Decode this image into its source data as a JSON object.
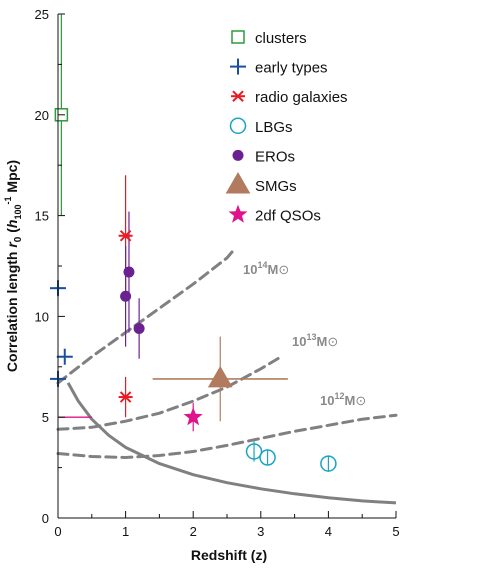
{
  "chart_data": {
    "type": "scatter",
    "xlabel": "Redshift (z)",
    "ylabel": {
      "prefix": "Correlation length ",
      "r": "r",
      "r_sub": "0",
      "open": " (",
      "h": "h",
      "h_sub": "100",
      "h_sup": "-1",
      "close": " Mpc)"
    },
    "xlim": [
      0,
      5
    ],
    "ylim": [
      0,
      25
    ],
    "x_ticks": [
      "0",
      "1",
      "2",
      "3",
      "4",
      "5"
    ],
    "y_ticks": [
      "0",
      "5",
      "10",
      "15",
      "20",
      "25"
    ],
    "legend_position": "top-right",
    "series": [
      {
        "name": "clusters",
        "marker": "open-square",
        "color": "#2e9a3a",
        "points": [
          {
            "x": 0.05,
            "y": 20,
            "yerr_low": 5,
            "yerr_high": 5
          }
        ]
      },
      {
        "name": "early types",
        "marker": "plus",
        "color": "#1a4f9c",
        "points": [
          {
            "x": 0.0,
            "y": 11.4,
            "xerr_low": 0.05,
            "xerr_high": 0.1
          },
          {
            "x": 0.1,
            "y": 8.0,
            "xerr_low": 0.1,
            "xerr_high": 0.1,
            "yerr_low": 0.3,
            "yerr_high": 0.3
          },
          {
            "x": 0.0,
            "y": 6.9,
            "xerr_low": 0.05,
            "xerr_high": 0.1
          }
        ]
      },
      {
        "name": "radio galaxies",
        "marker": "asterisk",
        "color": "#e81c24",
        "points": [
          {
            "x": 1.0,
            "y": 14.0,
            "yerr_low": 3.0,
            "yerr_high": 3.0
          },
          {
            "x": 1.0,
            "y": 6.0,
            "yerr_low": 1.0,
            "yerr_high": 1.0
          }
        ]
      },
      {
        "name": "LBGs",
        "marker": "open-circle",
        "color": "#1aa3c4",
        "points": [
          {
            "x": 2.9,
            "y": 3.3,
            "yerr_low": 0.5,
            "yerr_high": 0.5
          },
          {
            "x": 3.1,
            "y": 3.0,
            "yerr_low": 0.4,
            "yerr_high": 0.4
          },
          {
            "x": 4.0,
            "y": 2.7,
            "yerr_low": 0.4,
            "yerr_high": 0.4
          }
        ]
      },
      {
        "name": "EROs",
        "marker": "filled-circle",
        "color": "#6a2290",
        "points": [
          {
            "x": 1.05,
            "y": 12.2,
            "yerr_low": 3.0,
            "yerr_high": 3.0
          },
          {
            "x": 1.0,
            "y": 11.0,
            "yerr_low": 2.5,
            "yerr_high": 2.5
          },
          {
            "x": 1.2,
            "y": 9.4,
            "yerr_low": 1.5,
            "yerr_high": 1.5
          }
        ]
      },
      {
        "name": "SMGs",
        "marker": "filled-triangle",
        "color": "#b27b5f",
        "points": [
          {
            "x": 2.4,
            "y": 6.9,
            "xerr_low": 1.0,
            "xerr_high": 1.0,
            "yerr_low": 2.1,
            "yerr_high": 2.1
          }
        ]
      },
      {
        "name": "2df QSOs",
        "marker": "filled-star",
        "color": "#e0148a",
        "points": [
          {
            "x": 2.0,
            "y": 5.0,
            "yerr_low": 0.7,
            "yerr_high": 0.7
          }
        ]
      }
    ],
    "reference_segments": [
      {
        "color": "#e0148a",
        "x": [
          0.0,
          0.5
        ],
        "y": [
          5.0,
          5.0
        ]
      }
    ],
    "mass_curves": [
      {
        "label_main": "10",
        "label_exp": "14",
        "label_unit": "M",
        "label_sun": "⊙",
        "x": [
          0,
          0.5,
          1,
          1.5,
          2,
          2.5,
          2.6
        ],
        "y": [
          6.7,
          8.0,
          9.2,
          10.4,
          11.6,
          12.9,
          13.3
        ]
      },
      {
        "label_main": "10",
        "label_exp": "13",
        "label_unit": "M",
        "label_sun": "⊙",
        "x": [
          0,
          0.5,
          1,
          1.5,
          2,
          2.5,
          3,
          3.3
        ],
        "y": [
          4.4,
          4.5,
          4.8,
          5.2,
          5.8,
          6.5,
          7.4,
          8.0
        ]
      },
      {
        "label_main": "10",
        "label_exp": "12",
        "label_unit": "M",
        "label_sun": "⊙",
        "x": [
          0,
          0.5,
          1,
          1.5,
          2,
          2.5,
          3,
          3.5,
          4,
          4.5,
          5
        ],
        "y": [
          3.2,
          3.05,
          3.0,
          3.1,
          3.3,
          3.6,
          3.95,
          4.3,
          4.6,
          4.9,
          5.1
        ]
      }
    ],
    "model_curve": {
      "x": [
        0.15,
        0.3,
        0.5,
        0.75,
        1,
        1.5,
        2,
        2.5,
        3,
        3.5,
        4,
        4.5,
        5
      ],
      "y": [
        6.7,
        5.8,
        4.9,
        4.1,
        3.5,
        2.7,
        2.15,
        1.75,
        1.45,
        1.2,
        1.0,
        0.85,
        0.75
      ]
    }
  }
}
